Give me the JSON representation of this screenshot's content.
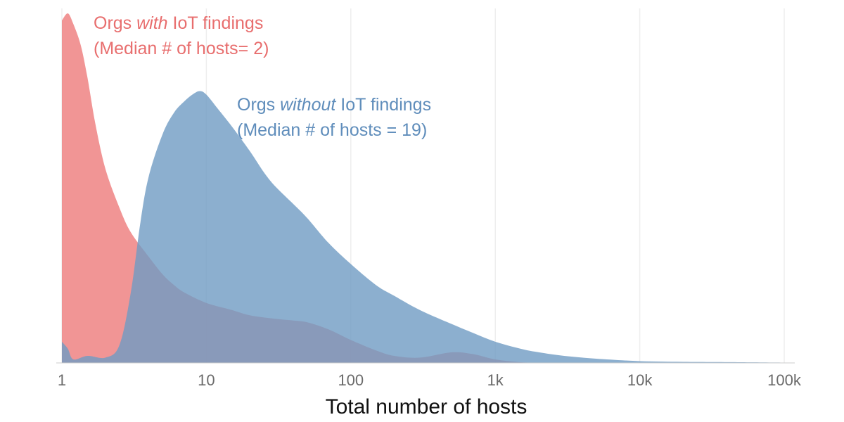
{
  "chart_data": {
    "type": "area",
    "xscale": "log",
    "xlim": [
      1,
      100000
    ],
    "xlabel": "Total number of hosts",
    "ylabel": "",
    "title": "",
    "grid": true,
    "xticks": [
      {
        "value": 1,
        "label": "1"
      },
      {
        "value": 10,
        "label": "10"
      },
      {
        "value": 100,
        "label": "100"
      },
      {
        "value": 1000,
        "label": "1k"
      },
      {
        "value": 10000,
        "label": "10k"
      },
      {
        "value": 100000,
        "label": "100k"
      }
    ],
    "series": [
      {
        "name": "Orgs with IoT findings",
        "color": "#ee7b7b",
        "opacity": 0.8,
        "label_lines": [
          {
            "parts": [
              {
                "text": "Orgs ",
                "italic": false
              },
              {
                "text": "with",
                "italic": true
              },
              {
                "text": " IoT findings",
                "italic": false
              }
            ]
          },
          {
            "parts": [
              {
                "text": "(Median # of hosts= 2)",
                "italic": false
              }
            ]
          }
        ],
        "points": [
          [
            1,
            0.97
          ],
          [
            1.1,
            0.99
          ],
          [
            1.2,
            0.96
          ],
          [
            1.35,
            0.9
          ],
          [
            1.5,
            0.81
          ],
          [
            1.7,
            0.68
          ],
          [
            2,
            0.55
          ],
          [
            2.5,
            0.44
          ],
          [
            3,
            0.37
          ],
          [
            4,
            0.3
          ],
          [
            5,
            0.25
          ],
          [
            6,
            0.22
          ],
          [
            7,
            0.2
          ],
          [
            10,
            0.17
          ],
          [
            15,
            0.15
          ],
          [
            20,
            0.135
          ],
          [
            30,
            0.125
          ],
          [
            40,
            0.12
          ],
          [
            50,
            0.115
          ],
          [
            70,
            0.095
          ],
          [
            100,
            0.065
          ],
          [
            150,
            0.035
          ],
          [
            200,
            0.02
          ],
          [
            300,
            0.015
          ],
          [
            500,
            0.03
          ],
          [
            700,
            0.025
          ],
          [
            1000,
            0.01
          ],
          [
            1500,
            0.002
          ],
          [
            2000,
            0
          ]
        ]
      },
      {
        "name": "Orgs without IoT findings",
        "color": "#6f9bc3",
        "opacity": 0.8,
        "label_lines": [
          {
            "parts": [
              {
                "text": "Orgs ",
                "italic": false
              },
              {
                "text": "without",
                "italic": true
              },
              {
                "text": " IoT findings",
                "italic": false
              }
            ]
          },
          {
            "parts": [
              {
                "text": "(Median # of hosts = 19)",
                "italic": false
              }
            ]
          }
        ],
        "points": [
          [
            1,
            0.06
          ],
          [
            1.1,
            0.04
          ],
          [
            1.2,
            0.01
          ],
          [
            1.5,
            0.02
          ],
          [
            2,
            0.015
          ],
          [
            2.5,
            0.05
          ],
          [
            3,
            0.2
          ],
          [
            3.5,
            0.4
          ],
          [
            4,
            0.53
          ],
          [
            5,
            0.65
          ],
          [
            6,
            0.71
          ],
          [
            7,
            0.74
          ],
          [
            8,
            0.76
          ],
          [
            9,
            0.77
          ],
          [
            10,
            0.76
          ],
          [
            12,
            0.72
          ],
          [
            15,
            0.67
          ],
          [
            20,
            0.6
          ],
          [
            25,
            0.54
          ],
          [
            30,
            0.5
          ],
          [
            40,
            0.45
          ],
          [
            50,
            0.41
          ],
          [
            70,
            0.34
          ],
          [
            100,
            0.28
          ],
          [
            150,
            0.22
          ],
          [
            200,
            0.19
          ],
          [
            300,
            0.15
          ],
          [
            500,
            0.11
          ],
          [
            700,
            0.085
          ],
          [
            1000,
            0.06
          ],
          [
            1500,
            0.04
          ],
          [
            2000,
            0.03
          ],
          [
            3000,
            0.02
          ],
          [
            5000,
            0.012
          ],
          [
            10000,
            0.005
          ],
          [
            20000,
            0.003
          ],
          [
            50000,
            0.002
          ],
          [
            100000,
            0.001
          ]
        ]
      }
    ]
  }
}
